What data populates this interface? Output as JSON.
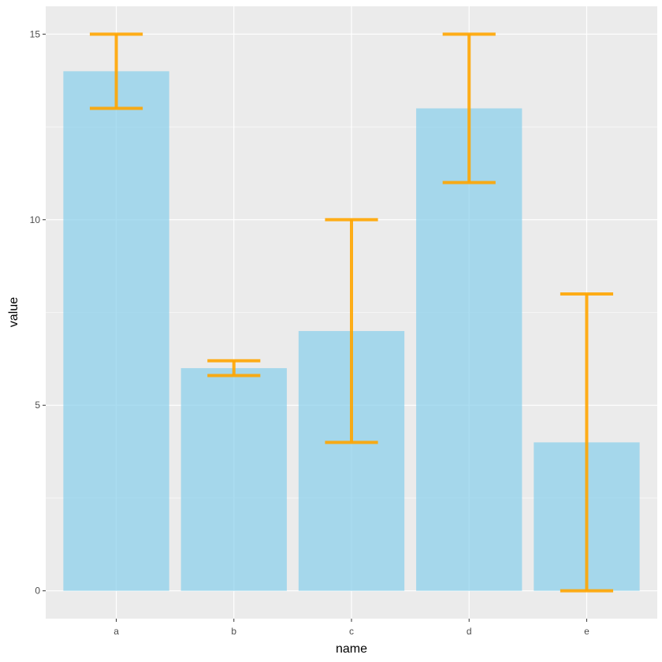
{
  "chart_data": {
    "type": "bar",
    "categories": [
      "a",
      "b",
      "c",
      "d",
      "e"
    ],
    "values": [
      14,
      6,
      7,
      13,
      4
    ],
    "error_low": [
      13,
      5.8,
      4,
      11,
      0
    ],
    "error_high": [
      15,
      6.2,
      10,
      15,
      8
    ],
    "xlabel": "name",
    "ylabel": "value",
    "ylim": [
      -0.75,
      15.75
    ],
    "yticks": [
      0,
      5,
      10,
      15
    ],
    "ytick_labels": [
      "0",
      "5",
      "10",
      "15"
    ],
    "grid": true,
    "colors": {
      "bar": "#87CEEB",
      "bar_opacity": 0.7,
      "errorbar": "#FFA500",
      "panel_background": "#EBEBEB",
      "gridline": "#FFFFFF",
      "tick_label": "#4D4D4D",
      "axis_title": "#000000"
    }
  }
}
